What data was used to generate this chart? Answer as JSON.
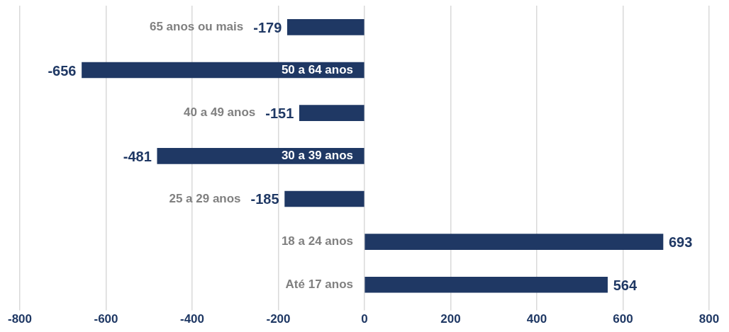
{
  "chart_data": {
    "type": "bar",
    "orientation": "horizontal",
    "categories": [
      "65 anos ou mais",
      "50 a 64 anos",
      "40 a 49 anos",
      "30 a 39 anos",
      "25 a 29 anos",
      "18 a 24 anos",
      "Até 17 anos"
    ],
    "values": [
      -179,
      -656,
      -151,
      -481,
      -185,
      693,
      564
    ],
    "color": "#1f3864",
    "xlim": [
      -800,
      800
    ],
    "xticks": [
      -800,
      -600,
      -400,
      -200,
      0,
      200,
      400,
      600,
      800
    ],
    "grid": "x",
    "data_labels": true
  }
}
